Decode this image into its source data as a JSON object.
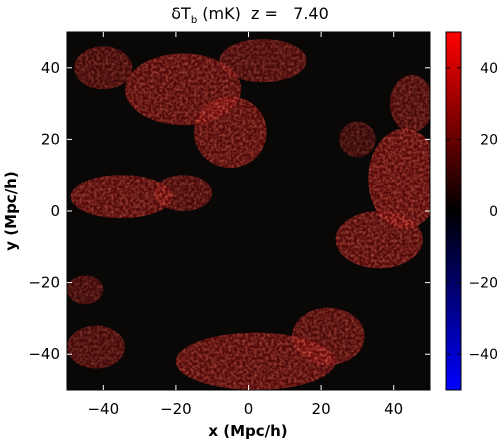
{
  "chart_data": {
    "type": "heatmap",
    "title": "δT_b (mK) z = 7.40",
    "title_parts": {
      "delta": "δ",
      "t": "T",
      "sub": "b",
      "rest": " (mK)  z =   7.40"
    },
    "xlabel": "x (Mpc/h)",
    "ylabel": "y (Mpc/h)",
    "xlim": [
      -50,
      50
    ],
    "ylim": [
      -50,
      50
    ],
    "x_ticks": [
      -40,
      -20,
      0,
      20,
      40
    ],
    "x_tick_labels": [
      "−40",
      "−20",
      "0",
      "20",
      "40"
    ],
    "y_ticks": [
      -40,
      -20,
      0,
      20,
      40
    ],
    "y_tick_labels": [
      "−40",
      "−20",
      "0",
      "20",
      "40"
    ],
    "colorbar": {
      "range": [
        -50,
        50
      ],
      "ticks": [
        40,
        20,
        0,
        -20,
        -40
      ],
      "tick_labels": [
        "40",
        "20",
        "0",
        "−20",
        "−40"
      ],
      "colormap": [
        "#0000ff",
        "#000000",
        "#ff0000"
      ]
    },
    "colors": {
      "background": "#0a0808",
      "neutral": "#000000",
      "positive": "#ff1a1a"
    },
    "regions": [
      {
        "name": "upper-left-cluster",
        "cx": -18,
        "cy": 34,
        "rx": 16,
        "ry": 10,
        "level": 0.7
      },
      {
        "name": "upper-left-arm",
        "cx": -5,
        "cy": 22,
        "rx": 10,
        "ry": 10,
        "level": 0.7
      },
      {
        "name": "top-center",
        "cx": 4,
        "cy": 42,
        "rx": 12,
        "ry": 6,
        "level": 0.6
      },
      {
        "name": "left-middle",
        "cx": -35,
        "cy": 4,
        "rx": 14,
        "ry": 6,
        "level": 0.7
      },
      {
        "name": "left-middle-2",
        "cx": -18,
        "cy": 5,
        "rx": 8,
        "ry": 5,
        "level": 0.6
      },
      {
        "name": "right-middle",
        "cx": 43,
        "cy": 9,
        "rx": 10,
        "ry": 14,
        "level": 0.75
      },
      {
        "name": "right-lower",
        "cx": 36,
        "cy": -8,
        "rx": 12,
        "ry": 8,
        "level": 0.7
      },
      {
        "name": "right-top",
        "cx": 45,
        "cy": 30,
        "rx": 6,
        "ry": 8,
        "level": 0.6
      },
      {
        "name": "bottom-center",
        "cx": 2,
        "cy": -42,
        "rx": 22,
        "ry": 8,
        "level": 0.7
      },
      {
        "name": "bottom-right",
        "cx": 22,
        "cy": -35,
        "rx": 10,
        "ry": 8,
        "level": 0.65
      },
      {
        "name": "bottom-left",
        "cx": -42,
        "cy": -38,
        "rx": 8,
        "ry": 6,
        "level": 0.55
      },
      {
        "name": "left-lower",
        "cx": -45,
        "cy": -22,
        "rx": 5,
        "ry": 4,
        "level": 0.5
      },
      {
        "name": "upper-far-left",
        "cx": -40,
        "cy": 40,
        "rx": 8,
        "ry": 6,
        "level": 0.55
      },
      {
        "name": "upper-right-small",
        "cx": 30,
        "cy": 20,
        "rx": 5,
        "ry": 5,
        "level": 0.45
      }
    ]
  }
}
